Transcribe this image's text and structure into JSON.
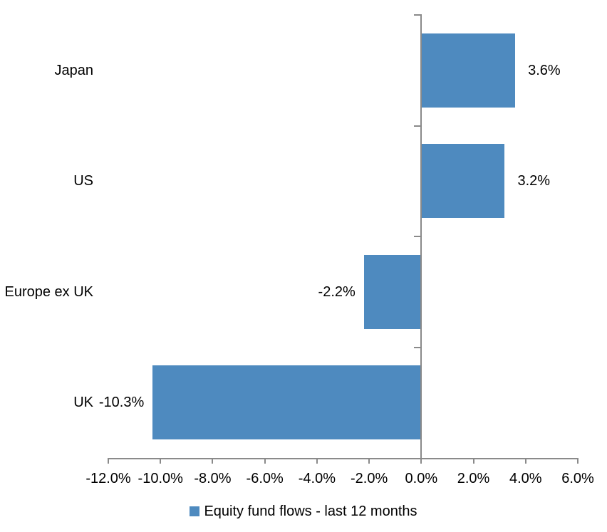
{
  "chart_data": {
    "type": "bar",
    "orientation": "horizontal",
    "title": "",
    "xlabel": "",
    "ylabel": "",
    "grid": false,
    "categories": [
      "Japan",
      "US",
      "Europe ex UK",
      "UK"
    ],
    "series": [
      {
        "name": "Equity fund flows - last 12 months",
        "values": [
          3.6,
          3.2,
          -2.2,
          -10.3
        ],
        "data_labels": [
          "3.6%",
          "3.2%",
          "-2.2%",
          "-10.3%"
        ]
      }
    ],
    "xlim": [
      -12,
      6
    ],
    "x_ticks": [
      -12,
      -10,
      -8,
      -6,
      -4,
      -2,
      0,
      2,
      4,
      6
    ],
    "x_tick_labels": [
      "-12.0%",
      "-10.0%",
      "-8.0%",
      "-6.0%",
      "-4.0%",
      "-2.0%",
      "0.0%",
      "2.0%",
      "4.0%",
      "6.0%"
    ],
    "legend": {
      "position": "bottom",
      "entries": [
        {
          "label": "Equity fund flows - last 12 months",
          "swatch": "square"
        }
      ]
    },
    "colors": {
      "bar": "#4E8ABF",
      "axis": "#8A8A8A",
      "text": "#000000",
      "background": "#FFFFFF"
    }
  }
}
